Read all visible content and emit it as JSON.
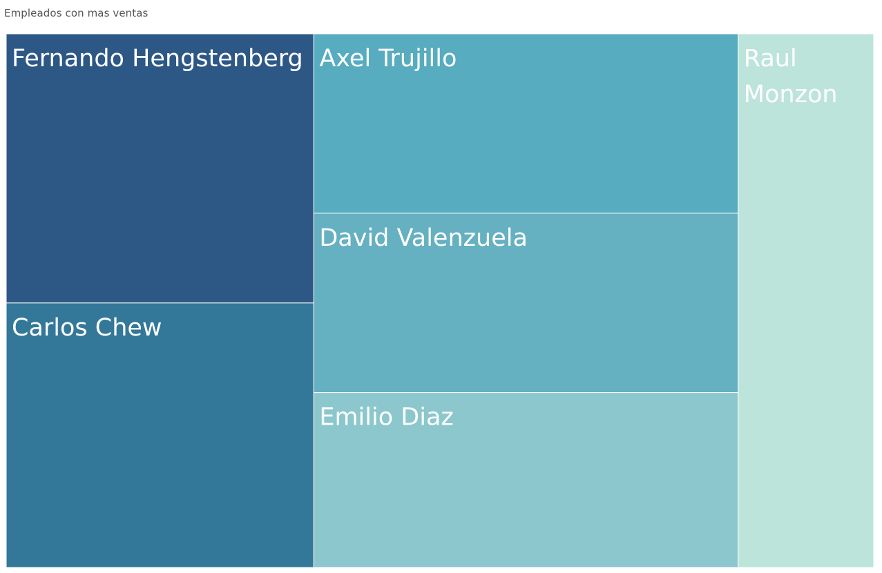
{
  "chart_data": {
    "type": "treemap",
    "title": "Empleados con mas ventas",
    "items": [
      {
        "name": "Fernando Hengstenberg",
        "value": 174,
        "color": "#2d5886"
      },
      {
        "name": "Carlos Chew",
        "value": 171,
        "color": "#347899"
      },
      {
        "name": "Axel Trujillo",
        "value": 160,
        "color": "#57acc0"
      },
      {
        "name": "David Valenzuela",
        "value": 160,
        "color": "#65b0c1"
      },
      {
        "name": "Emilio Diaz",
        "value": 156,
        "color": "#8bc7cd"
      },
      {
        "name": "Raul Monzon",
        "value": 152,
        "color": "#bde4da"
      }
    ]
  }
}
